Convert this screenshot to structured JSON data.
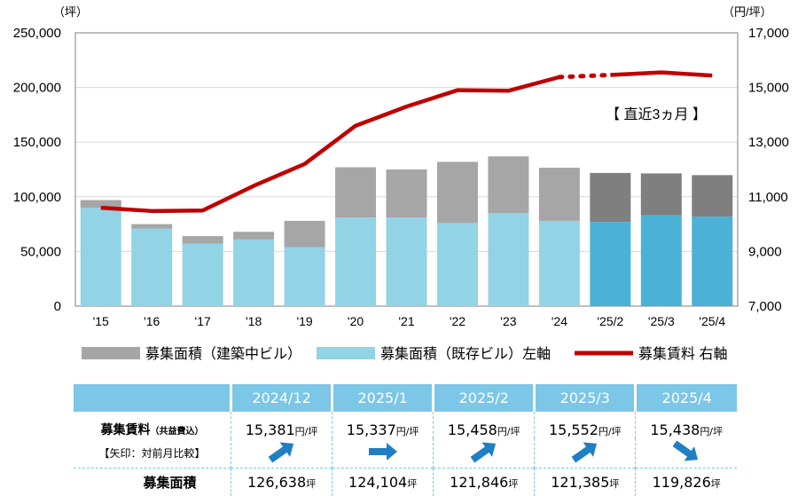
{
  "chart_data": {
    "type": "bar",
    "left_unit": "（坪）",
    "right_unit": "（円/坪）",
    "categories": [
      "'15",
      "'16",
      "'17",
      "'18",
      "'19",
      "'20",
      "'21",
      "'22",
      "'23",
      "'24",
      "'25/2",
      "'25/3",
      "'25/4"
    ],
    "left_axis": {
      "min": 0,
      "max": 250000,
      "ticks": [
        "0",
        "50,000",
        "100,000",
        "150,000",
        "200,000",
        "250,000"
      ]
    },
    "right_axis": {
      "min": 7000,
      "max": 17000,
      "ticks": [
        "7,000",
        "9,000",
        "11,000",
        "13,000",
        "15,000",
        "17,000"
      ]
    },
    "series": [
      {
        "name": "募集面積（既存ビル）左軸",
        "kind": "bar",
        "axis": "left",
        "values": [
          90000,
          71000,
          57000,
          61000,
          54000,
          81000,
          81000,
          76000,
          85000,
          78000,
          77000,
          83000,
          82000
        ],
        "colors": [
          "#92d3e6",
          "#92d3e6",
          "#92d3e6",
          "#92d3e6",
          "#92d3e6",
          "#92d3e6",
          "#92d3e6",
          "#92d3e6",
          "#92d3e6",
          "#92d3e6",
          "#4bb2d5",
          "#4bb2d5",
          "#4bb2d5"
        ]
      },
      {
        "name": "募集面積（建築中ビル）",
        "kind": "bar",
        "axis": "left",
        "values": [
          7000,
          4000,
          7000,
          7000,
          24000,
          46000,
          44000,
          56000,
          52000,
          48638,
          44846,
          38385,
          37826
        ],
        "colors": [
          "#a6a6a6",
          "#a6a6a6",
          "#a6a6a6",
          "#a6a6a6",
          "#a6a6a6",
          "#a6a6a6",
          "#a6a6a6",
          "#a6a6a6",
          "#a6a6a6",
          "#a6a6a6",
          "#7f7f7f",
          "#7f7f7f",
          "#7f7f7f"
        ]
      },
      {
        "name": "募集賃料 右軸",
        "kind": "line",
        "axis": "right",
        "color": "#c00000",
        "values": [
          10600,
          10480,
          10500,
          11400,
          12200,
          13600,
          14300,
          14900,
          14880,
          15381,
          15458,
          15552,
          15438
        ]
      }
    ],
    "annotation": "【 直近3ヵ月 】",
    "legend": [
      {
        "label": "募集面積（建築中ビル）",
        "color": "#a6a6a6",
        "shape": "box"
      },
      {
        "label": "募集面積（既存ビル）左軸",
        "color": "#92d3e6",
        "shape": "box"
      },
      {
        "label": "募集賃料 右軸",
        "color": "#c00000",
        "shape": "line"
      }
    ],
    "legend_position": "bottom"
  },
  "table": {
    "months": [
      "2024/12",
      "2025/1",
      "2025/2",
      "2025/3",
      "2025/4"
    ],
    "rent_label": "募集賃料",
    "rent_sub": "（共益費込）",
    "arrow_note": "【矢印：対前月比較】",
    "area_label": "募集面積",
    "rent_unit": "円/坪",
    "area_unit": "坪",
    "rents": [
      "15,381",
      "15,337",
      "15,458",
      "15,552",
      "15,438"
    ],
    "areas": [
      "126,638",
      "124,104",
      "121,846",
      "121,385",
      "119,826"
    ],
    "arrows": [
      "up",
      "flat",
      "up",
      "up",
      "down"
    ],
    "arrow_color": "#1f7fc4"
  }
}
